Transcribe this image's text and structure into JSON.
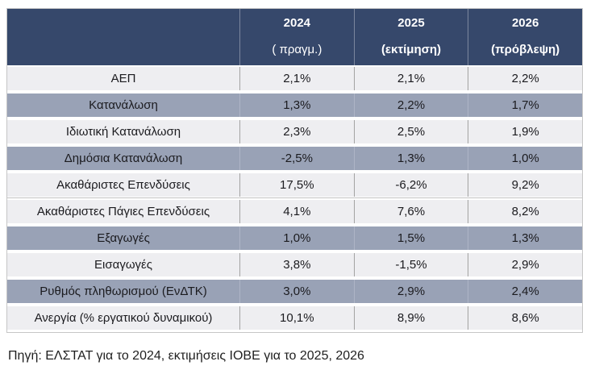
{
  "table": {
    "columns": [
      {
        "year": "2024",
        "sub": "( πραγμ.)"
      },
      {
        "year": "2025",
        "sub": "(εκτίμηση)"
      },
      {
        "year": "2026",
        "sub": "(πρόβλεψη)"
      }
    ],
    "rows": [
      {
        "label": "ΑΕΠ",
        "values": [
          "2,1%",
          "2,1%",
          "2,2%"
        ],
        "shade": "light"
      },
      {
        "label": "Κατανάλωση",
        "values": [
          "1,3%",
          "2,2%",
          "1,7%"
        ],
        "shade": "dark"
      },
      {
        "label": "Ιδιωτική Κατανάλωση",
        "values": [
          "2,3%",
          "2,5%",
          "1,9%"
        ],
        "shade": "light"
      },
      {
        "label": "Δημόσια Κατανάλωση",
        "values": [
          "-2,5%",
          "1,3%",
          "1,0%"
        ],
        "shade": "dark"
      },
      {
        "label": "Ακαθάριστες Επενδύσεις",
        "values": [
          "17,5%",
          "-6,2%",
          "9,2%"
        ],
        "shade": "light"
      },
      {
        "label": "Ακαθάριστες Πάγιες Επενδύσεις",
        "values": [
          "4,1%",
          "7,6%",
          "8,2%"
        ],
        "shade": "light"
      },
      {
        "label": "Εξαγωγές",
        "values": [
          "1,0%",
          "1,5%",
          "1,3%"
        ],
        "shade": "dark"
      },
      {
        "label": "Εισαγωγές",
        "values": [
          "3,8%",
          "-1,5%",
          "2,9%"
        ],
        "shade": "light"
      },
      {
        "label": "Ρυθμός πληθωρισμού (ΕνΔΤΚ)",
        "values": [
          "3,0%",
          "2,9%",
          "2,4%"
        ],
        "shade": "dark"
      },
      {
        "label": "Ανεργία (% εργατικού δυναμικού)",
        "values": [
          "10,1%",
          "8,9%",
          "8,6%"
        ],
        "shade": "light"
      }
    ]
  },
  "footer": {
    "source": "Πηγή: ΕΛΣΤΑΤ για το 2024, εκτιμήσεις ΙΟΒΕ για το 2025, 2026"
  },
  "colors": {
    "header_bg": "#36486b",
    "row_dark": "#99a2b6",
    "row_light": "#eeeef1",
    "header_text": "#ffffff",
    "body_text": "#1b1b1f"
  },
  "chart_data": {
    "type": "table",
    "title": "",
    "unit": "%",
    "categories": [
      "ΑΕΠ",
      "Κατανάλωση",
      "Ιδιωτική Κατανάλωση",
      "Δημόσια Κατανάλωση",
      "Ακαθάριστες Επενδύσεις",
      "Ακαθάριστες Πάγιες Επενδύσεις",
      "Εξαγωγές",
      "Εισαγωγές",
      "Ρυθμός πληθωρισμού (ΕνΔΤΚ)",
      "Ανεργία (% εργατικού δυναμικού)"
    ],
    "series": [
      {
        "name": "2024 ( πραγμ.)",
        "values": [
          2.1,
          1.3,
          2.3,
          -2.5,
          17.5,
          4.1,
          1.0,
          3.8,
          3.0,
          10.1
        ]
      },
      {
        "name": "2025 (εκτίμηση)",
        "values": [
          2.1,
          2.2,
          2.5,
          1.3,
          -6.2,
          7.6,
          1.5,
          -1.5,
          2.9,
          8.9
        ]
      },
      {
        "name": "2026 (πρόβλεψη)",
        "values": [
          2.2,
          1.7,
          1.9,
          1.0,
          9.2,
          8.2,
          1.3,
          2.9,
          2.4,
          8.6
        ]
      }
    ],
    "source_note": "Πηγή: ΕΛΣΤΑΤ για το 2024, εκτιμήσεις ΙΟΒΕ για το 2025, 2026"
  }
}
